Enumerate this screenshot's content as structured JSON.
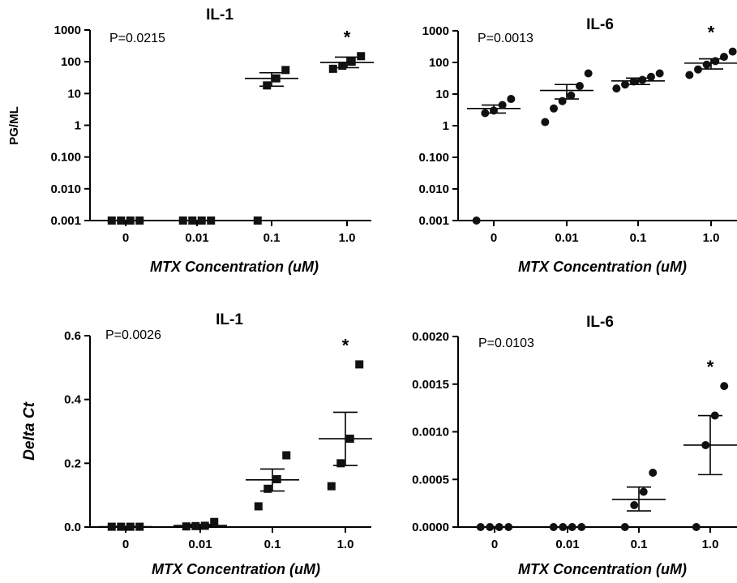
{
  "chart_data": [
    {
      "type": "scatter",
      "title": "IL-1",
      "xlabel": "MTX Concentration (uM)",
      "ylabel": "PG/ML",
      "yscale": "log",
      "ylim": [
        0.001,
        1000
      ],
      "yticks": [
        "0.001",
        "0.010",
        "0.100",
        "1",
        "10",
        "100",
        "1000"
      ],
      "categories": [
        "0",
        "0.01",
        "0.1",
        "1.0"
      ],
      "marker": "square",
      "annotation": "P=0.0215",
      "significance": [
        "",
        "",
        "",
        "*"
      ],
      "points": [
        [
          0.001,
          0.001,
          0.001,
          0.001
        ],
        [
          0.001,
          0.001,
          0.001,
          0.001
        ],
        [
          0.001,
          18,
          30,
          55
        ],
        [
          60,
          75,
          100,
          150
        ]
      ],
      "mean": [
        0.001,
        0.001,
        30,
        95
      ],
      "error_low": [
        0.001,
        0.001,
        17,
        65
      ],
      "error_high": [
        0.001,
        0.001,
        45,
        140
      ]
    },
    {
      "type": "scatter",
      "title": "IL-6",
      "xlabel": "MTX Concentration (uM)",
      "ylabel": "",
      "yscale": "log",
      "ylim": [
        0.001,
        1000
      ],
      "yticks": [
        "0.001",
        "0.010",
        "0.100",
        "1",
        "10",
        "100",
        "1000"
      ],
      "categories": [
        "0",
        "0.01",
        "0.1",
        "1.0"
      ],
      "marker": "circle",
      "annotation": "P=0.0013",
      "significance": [
        "",
        "",
        "",
        "*"
      ],
      "points": [
        [
          0.001,
          2.5,
          3,
          4.5,
          7
        ],
        [
          1.3,
          3.5,
          6,
          9,
          18,
          45
        ],
        [
          15,
          20,
          25,
          28,
          35,
          45
        ],
        [
          40,
          60,
          85,
          110,
          150,
          220
        ]
      ],
      "mean": [
        3.5,
        13,
        26,
        95
      ],
      "error_low": [
        2.5,
        7,
        20,
        62
      ],
      "error_high": [
        4.5,
        20,
        32,
        130
      ]
    },
    {
      "type": "scatter",
      "title": "IL-1",
      "xlabel": "MTX Concentration (uM)",
      "ylabel": "Delta Ct",
      "yscale": "linear",
      "ylim": [
        0,
        0.6
      ],
      "yticks": [
        "0.0",
        "0.2",
        "0.4",
        "0.6"
      ],
      "categories": [
        "0",
        "0.01",
        "0.1",
        "1.0"
      ],
      "marker": "square",
      "annotation": "P=0.0026",
      "significance": [
        "",
        "",
        "",
        "*"
      ],
      "points": [
        [
          0.001,
          0.001,
          0.001,
          0.001
        ],
        [
          0.002,
          0.003,
          0.004,
          0.016
        ],
        [
          0.065,
          0.12,
          0.15,
          0.225
        ],
        [
          0.128,
          0.2,
          0.277,
          0.51
        ]
      ],
      "mean": [
        0.001,
        0.005,
        0.148,
        0.277
      ],
      "error_low": [
        0.0,
        0.002,
        0.113,
        0.193
      ],
      "error_high": [
        0.002,
        0.008,
        0.182,
        0.36
      ]
    },
    {
      "type": "scatter",
      "title": "IL-6",
      "xlabel": "MTX Concentration (uM)",
      "ylabel": "",
      "yscale": "linear",
      "ylim": [
        0,
        0.002
      ],
      "yticks": [
        "0.0000",
        "0.0005",
        "0.0010",
        "0.0015",
        "0.0020"
      ],
      "categories": [
        "0",
        "0.01",
        "0.1",
        "1.0"
      ],
      "marker": "circle",
      "annotation": "P=0.0103",
      "significance": [
        "",
        "",
        "",
        "*"
      ],
      "points": [
        [
          0,
          0,
          0,
          0
        ],
        [
          0,
          0,
          0,
          0
        ],
        [
          0.0,
          0.00023,
          0.00037,
          0.00057
        ],
        [
          0.0,
          0.00086,
          0.00117,
          0.00148
        ]
      ],
      "mean": [
        0,
        0,
        0.00029,
        0.00086
      ],
      "error_low": [
        0,
        0,
        0.00017,
        0.00055
      ],
      "error_high": [
        0,
        0,
        0.00042,
        0.00117
      ]
    }
  ]
}
